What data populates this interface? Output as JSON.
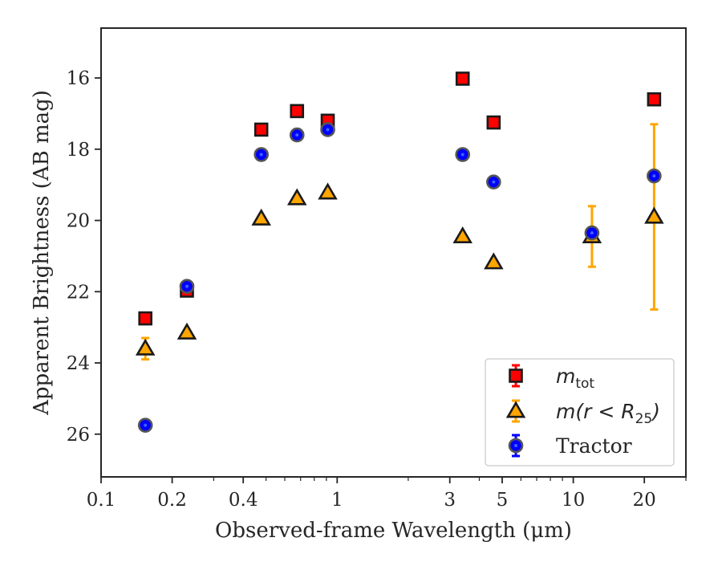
{
  "chart_data": {
    "type": "scatter",
    "title": "",
    "xlabel": "Observed-frame Wavelength (μm)",
    "ylabel": "Apparent Brightness (AB mag)",
    "xscale": "log",
    "xlim": [
      0.1,
      30
    ],
    "ylim": [
      27.2,
      14.6
    ],
    "y_inverted": true,
    "x_tick_labels": [
      "0.1",
      "0.2",
      "0.4",
      "1",
      "3",
      "5",
      "10",
      "20"
    ],
    "x_ticks": [
      0.1,
      0.2,
      0.4,
      1,
      3,
      5,
      10,
      20
    ],
    "y_ticks": [
      16,
      18,
      20,
      22,
      24,
      26
    ],
    "y_tick_labels": [
      "16",
      "18",
      "20",
      "22",
      "24",
      "26"
    ],
    "grid": false,
    "legend_position": "lower-right",
    "series": [
      {
        "name": "m_tot",
        "legend_label": "m",
        "legend_subscript": "tot",
        "marker": "square",
        "color": "#ff0000",
        "points": [
          {
            "x": 0.154,
            "y": 22.75
          },
          {
            "x": 0.231,
            "y": 21.97
          },
          {
            "x": 0.477,
            "y": 17.45
          },
          {
            "x": 0.676,
            "y": 16.93
          },
          {
            "x": 0.912,
            "y": 17.2
          },
          {
            "x": 3.4,
            "y": 16.02
          },
          {
            "x": 4.6,
            "y": 17.25
          },
          {
            "x": 22.0,
            "y": 16.6
          }
        ]
      },
      {
        "name": "m(r < R_25)",
        "legend_label": "m(r < R",
        "legend_subscript": "25",
        "legend_suffix": ")",
        "marker": "triangle",
        "color": "#ffa500",
        "points": [
          {
            "x": 0.154,
            "y": 23.6,
            "yerr": 0.3
          },
          {
            "x": 0.231,
            "y": 23.15
          },
          {
            "x": 0.477,
            "y": 19.95
          },
          {
            "x": 0.676,
            "y": 19.38
          },
          {
            "x": 0.912,
            "y": 19.22
          },
          {
            "x": 3.4,
            "y": 20.45
          },
          {
            "x": 4.6,
            "y": 21.18
          },
          {
            "x": 12.0,
            "y": 20.45,
            "yerr": 0.85
          },
          {
            "x": 22.0,
            "y": 19.9,
            "yerr_low": 2.6,
            "yerr_high": 2.6
          }
        ]
      },
      {
        "name": "Tractor",
        "legend_label": "Tractor",
        "marker": "circle",
        "color": "#0000ff",
        "points": [
          {
            "x": 0.154,
            "y": 25.75
          },
          {
            "x": 0.231,
            "y": 21.85
          },
          {
            "x": 0.477,
            "y": 18.15
          },
          {
            "x": 0.676,
            "y": 17.6
          },
          {
            "x": 0.912,
            "y": 17.45
          },
          {
            "x": 3.4,
            "y": 18.15
          },
          {
            "x": 4.6,
            "y": 18.92
          },
          {
            "x": 12.0,
            "y": 20.35
          },
          {
            "x": 22.0,
            "y": 18.75
          }
        ]
      }
    ]
  }
}
